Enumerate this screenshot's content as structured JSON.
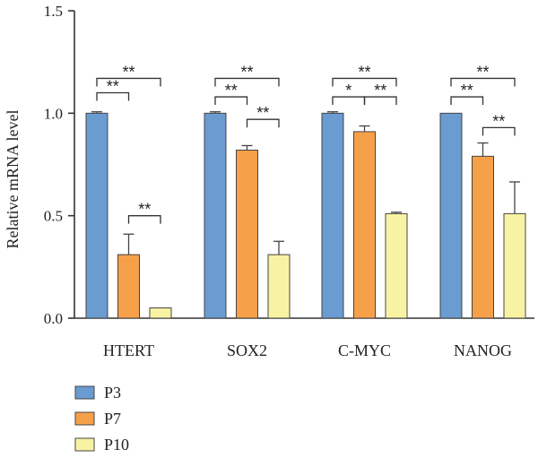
{
  "chart_data": {
    "type": "bar",
    "title": "",
    "xlabel": "",
    "ylabel": "Relative mRNA level",
    "ylim": [
      0,
      1.5
    ],
    "yticks": [
      "0.0",
      "0.5",
      "1.0",
      "1.5"
    ],
    "yticks_values": [
      0,
      0.5,
      1.0,
      1.5
    ],
    "grid": false,
    "legend_position": "bottom-left",
    "categories": [
      "HTERT",
      "SOX2",
      "C-MYC",
      "NANOG"
    ],
    "series": [
      {
        "name": "P3",
        "color": "#6a9bd1",
        "values": [
          1.0,
          1.0,
          1.0,
          1.0
        ],
        "errors": [
          0.007,
          0.007,
          0.007,
          0.0
        ]
      },
      {
        "name": "P7",
        "color": "#f7a04a",
        "values": [
          0.31,
          0.82,
          0.91,
          0.79
        ],
        "errors": [
          0.1,
          0.022,
          0.028,
          0.065
        ]
      },
      {
        "name": "P10",
        "color": "#f8f3a3",
        "values": [
          0.05,
          0.31,
          0.51,
          0.51
        ],
        "errors": [
          0.0,
          0.065,
          0.007,
          0.155
        ]
      }
    ],
    "significance": [
      {
        "category": 0,
        "from": 0,
        "to": 2,
        "label": "**",
        "y": 1.17
      },
      {
        "category": 0,
        "from": 0,
        "to": 1,
        "label": "**",
        "y": 1.1
      },
      {
        "category": 0,
        "from": 1,
        "to": 2,
        "label": "**",
        "y": 0.5
      },
      {
        "category": 1,
        "from": 0,
        "to": 2,
        "label": "**",
        "y": 1.17
      },
      {
        "category": 1,
        "from": 0,
        "to": 1,
        "label": "**",
        "y": 1.08
      },
      {
        "category": 1,
        "from": 1,
        "to": 2,
        "label": "**",
        "y": 0.97
      },
      {
        "category": 2,
        "from": 0,
        "to": 2,
        "label": "**",
        "y": 1.17
      },
      {
        "category": 2,
        "from": 0,
        "to": 1,
        "label": "*",
        "y": 1.08
      },
      {
        "category": 2,
        "from": 1,
        "to": 2,
        "label": "**",
        "y": 1.08
      },
      {
        "category": 3,
        "from": 0,
        "to": 2,
        "label": "**",
        "y": 1.17
      },
      {
        "category": 3,
        "from": 0,
        "to": 1,
        "label": "**",
        "y": 1.08
      },
      {
        "category": 3,
        "from": 1,
        "to": 2,
        "label": "**",
        "y": 0.93
      }
    ]
  }
}
